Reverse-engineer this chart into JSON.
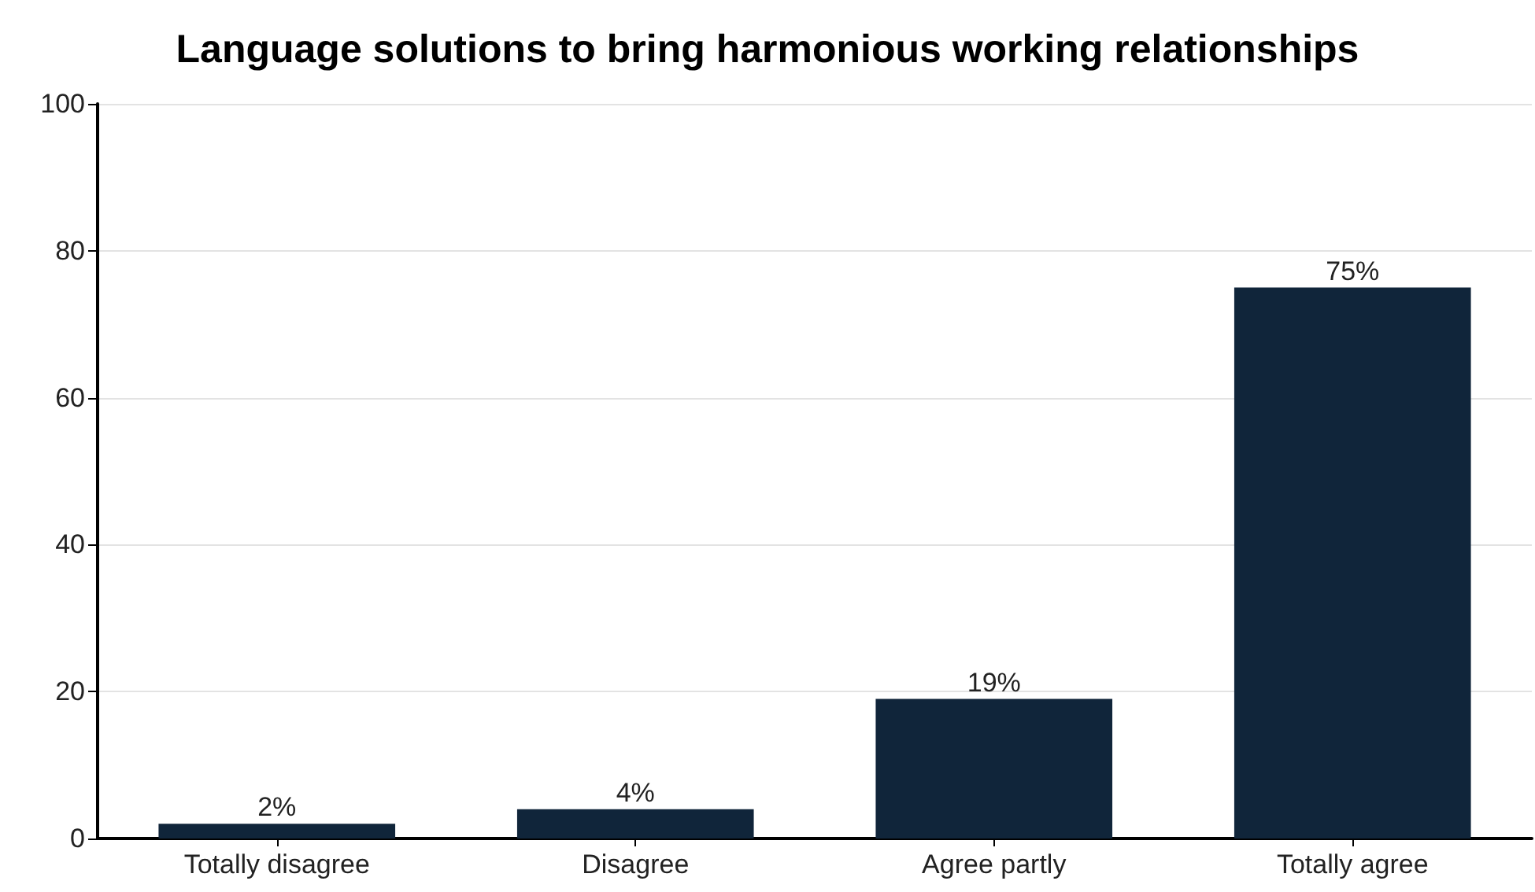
{
  "chart_data": {
    "type": "bar",
    "title": "Language solutions to bring harmonious working relationships",
    "categories": [
      "Totally disagree",
      "Disagree",
      "Agree partly",
      "Totally agree"
    ],
    "values": [
      2,
      4,
      19,
      75
    ],
    "color": "#10253a",
    "value_labels": [
      "2%",
      "4%",
      "19%",
      "75%"
    ],
    "ylim": [
      0,
      100
    ],
    "yticks": [
      0,
      20,
      40,
      60,
      80,
      100
    ],
    "grid": "y"
  }
}
